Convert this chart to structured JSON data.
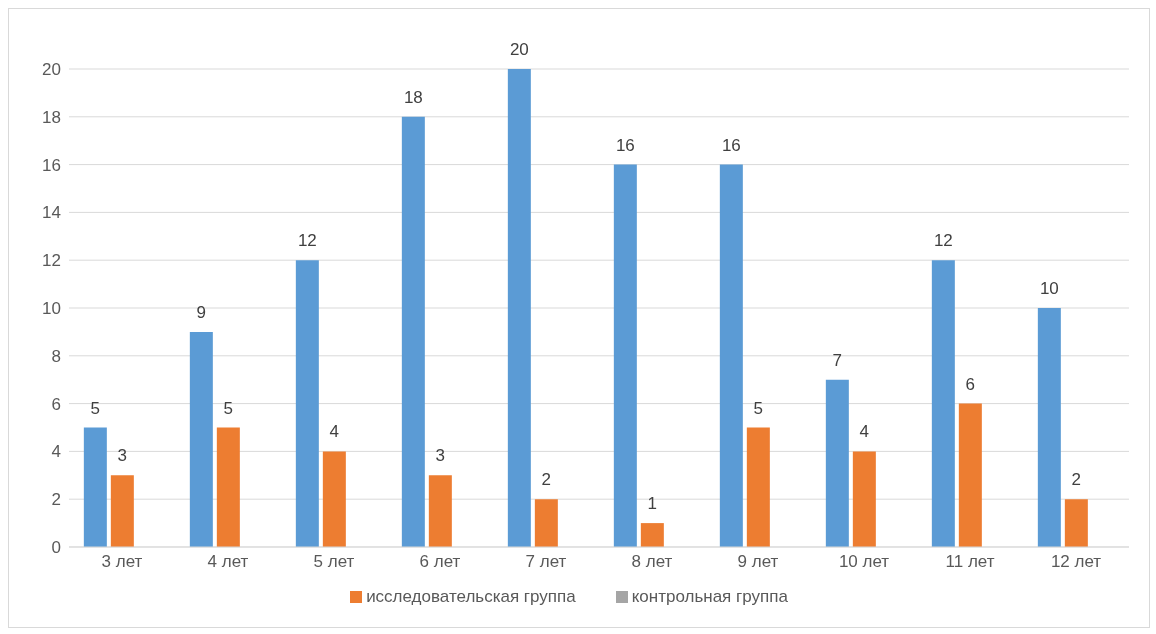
{
  "chart_data": {
    "type": "bar",
    "categories": [
      "3 лет",
      "4 лет",
      "5 лет",
      "6 лет",
      "7 лет",
      "8 лет",
      "9 лет",
      "10 лет",
      "11 лет",
      "12 лет"
    ],
    "series": [
      {
        "color": "#5b9bd5",
        "values": [
          5,
          9,
          12,
          18,
          20,
          16,
          16,
          7,
          12,
          10
        ]
      },
      {
        "name": "исследовательская группа",
        "color": "#ed7d31",
        "values": [
          3,
          5,
          4,
          3,
          2,
          1,
          5,
          4,
          6,
          2
        ]
      },
      {
        "name": "контрольная группа",
        "color": "#a5a5a5",
        "values": [
          null,
          null,
          null,
          null,
          null,
          null,
          null,
          null,
          null,
          null
        ]
      }
    ],
    "ylim": [
      0,
      20
    ],
    "yticks": [
      0,
      2,
      4,
      6,
      8,
      10,
      12,
      14,
      16,
      18,
      20
    ],
    "grid": "y",
    "legend": "bottom",
    "data_labels": true
  }
}
